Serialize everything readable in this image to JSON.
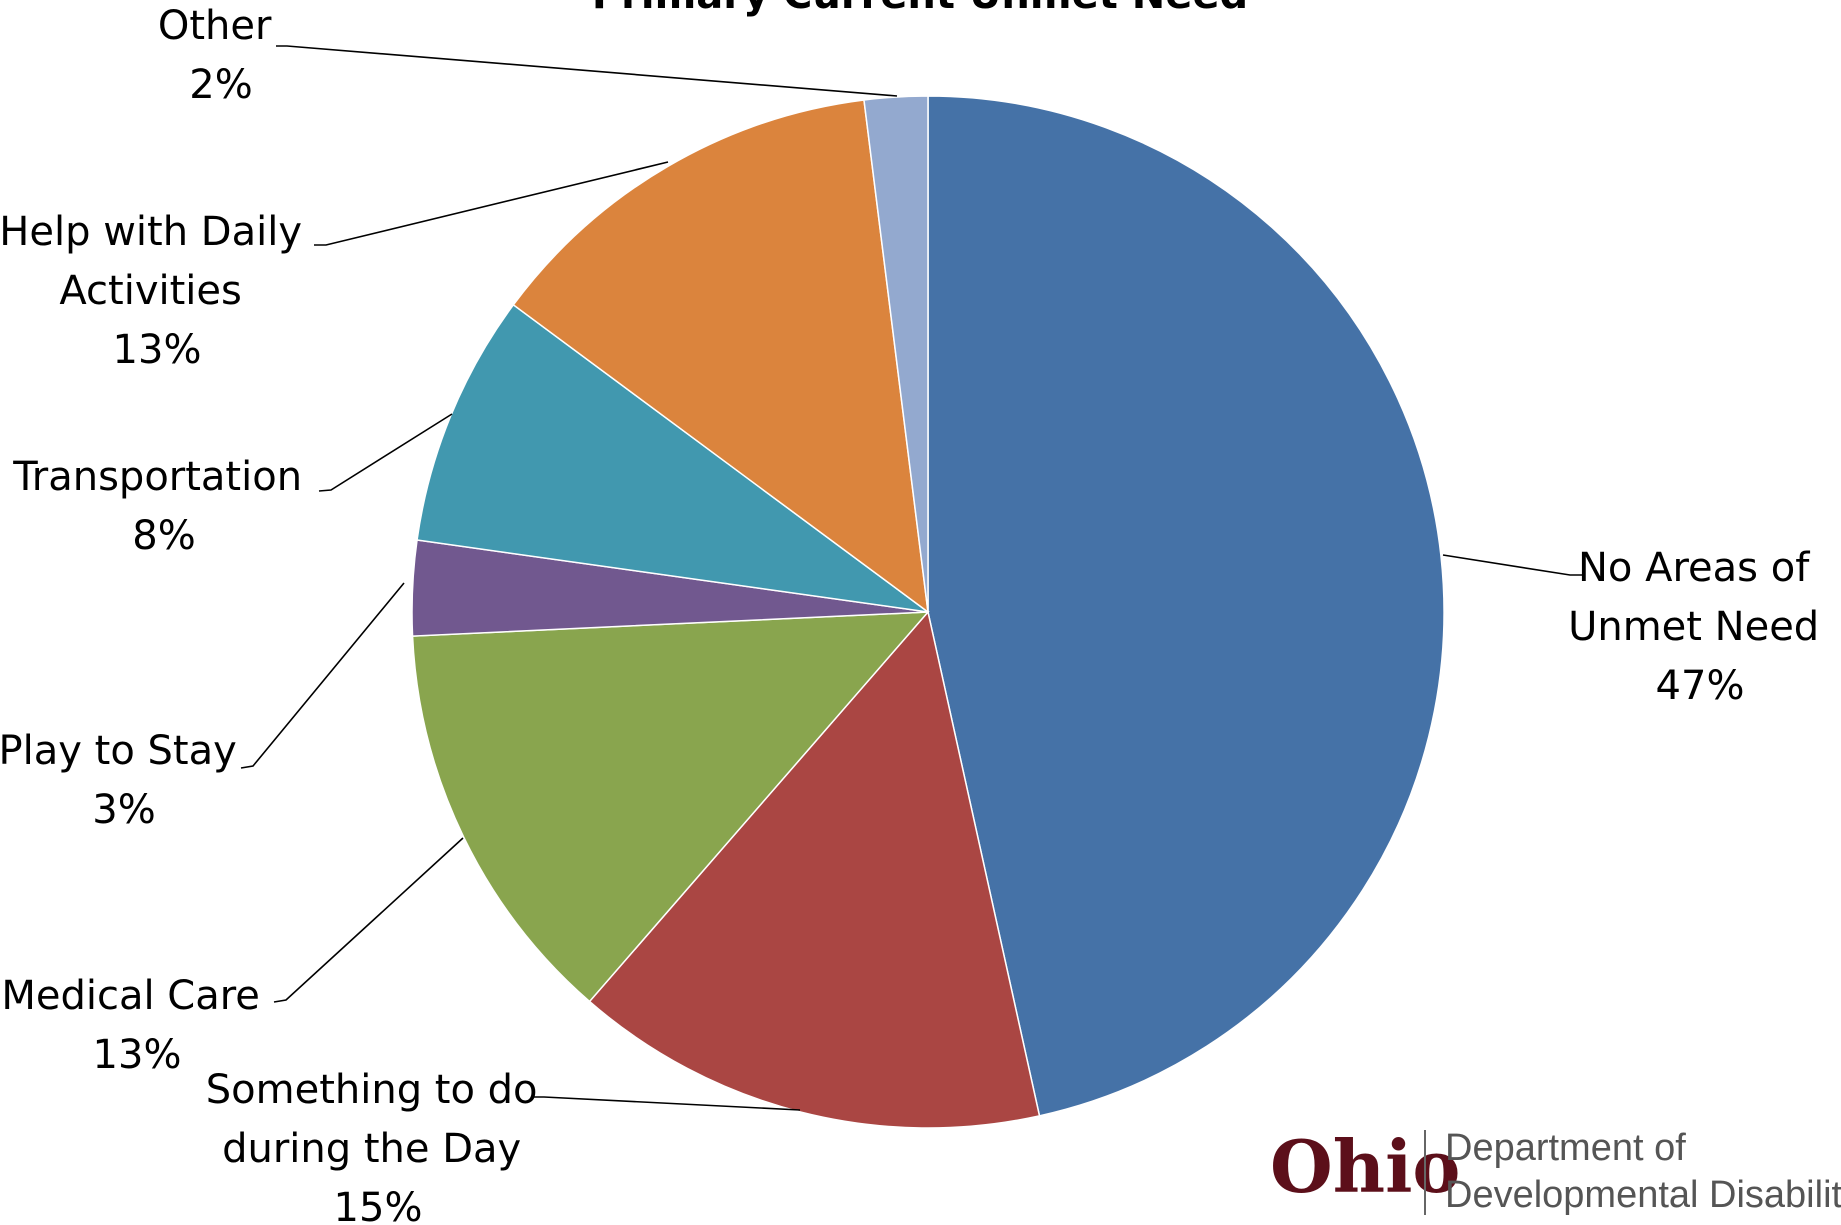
{
  "chart_data": {
    "type": "pie",
    "title": "Primary Current Unmet Need",
    "slices": [
      {
        "label": "No Areas of Unmet Need",
        "value": 47,
        "value_label": "47%",
        "color": "#4572a7"
      },
      {
        "label": "Something to do during the Day",
        "value": 15,
        "value_label": "15%",
        "color": "#aa4643"
      },
      {
        "label": "Medical Care",
        "value": 13,
        "value_label": "13%",
        "color": "#89a54e"
      },
      {
        "label": "Play to Stay",
        "value": 3,
        "value_label": "3%",
        "color": "#71588f"
      },
      {
        "label": "Transportation",
        "value": 8,
        "value_label": "8%",
        "color": "#4198af"
      },
      {
        "label": "Help with Daily Activities",
        "value": 13,
        "value_label": "13%",
        "color": "#db843d"
      },
      {
        "label": "Other",
        "value": 2,
        "value_label": "2%",
        "color": "#93a9cf"
      }
    ],
    "start_angle": "12 o'clock",
    "direction": "clockwise"
  },
  "labels": {
    "no_areas": {
      "line1": "No Areas of",
      "line2": "Unmet Need",
      "pct": "47%"
    },
    "something": {
      "line1": "Something to do",
      "line2": "during the Day",
      "pct": "15%"
    },
    "medical": {
      "line1": "Medical Care",
      "pct": "13%"
    },
    "play": {
      "line1": "Play to Stay",
      "pct": "3%"
    },
    "transport": {
      "line1": "Transportation",
      "pct": "8%"
    },
    "help": {
      "line1": "Help with Daily",
      "line2": "Activities",
      "pct": "13%"
    },
    "other": {
      "line1": "Other",
      "pct": "2%"
    }
  },
  "logo": {
    "word": "Ohio",
    "line1": "Department of",
    "line2": "Developmental Disabilities"
  }
}
